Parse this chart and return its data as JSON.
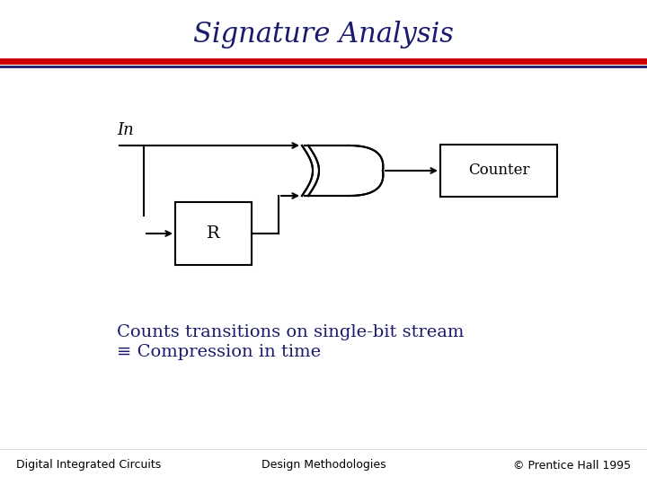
{
  "title": "Signature Analysis",
  "title_color": "#1a1a6e",
  "title_fontsize": 22,
  "bg_color": "#ffffff",
  "line1_color": "#cc0000",
  "line2_color": "#1a1a6e",
  "body_text_color": "#1a1a6e",
  "body_fontsize": 14,
  "footer_fontsize": 9,
  "footer_left": "Digital Integrated Circuits",
  "footer_center": "Design Methodologies",
  "footer_right": "© Prentice Hall 1995",
  "label_in": "In",
  "label_r": "R",
  "label_counter": "Counter",
  "bullet_text1": "Counts transitions on single-bit stream",
  "bullet_text2": "≡ Compression in time"
}
